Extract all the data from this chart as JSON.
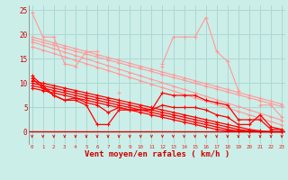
{
  "bg_color": "#cceee8",
  "grid_color": "#aad8d4",
  "line_color_dark": "#ff0000",
  "line_color_light": "#ff9999",
  "arrow_color": "#dd2222",
  "xlabel": "Vent moyen/en rafales ( km/h )",
  "xlabel_color": "#cc0000",
  "xlabel_fontsize": 6.5,
  "yticks": [
    0,
    5,
    10,
    15,
    20,
    25
  ],
  "xticks": [
    0,
    1,
    2,
    3,
    4,
    5,
    6,
    7,
    8,
    9,
    10,
    11,
    12,
    13,
    14,
    15,
    16,
    17,
    18,
    19,
    20,
    21,
    22,
    23
  ],
  "xlim": [
    0,
    23
  ],
  "ylim": [
    0,
    26
  ],
  "series_light_jagged": [
    [
      24.5,
      19.5,
      19.5,
      14.0,
      13.5,
      16.5,
      16.5,
      null,
      null,
      null,
      null,
      null,
      14.0,
      19.5,
      19.5,
      19.5,
      23.5,
      16.5,
      14.5,
      8.5,
      null,
      5.5,
      5.5,
      3.0
    ],
    [
      null,
      null,
      null,
      null,
      null,
      null,
      null,
      null,
      8.0,
      null,
      null,
      null,
      13.5,
      null,
      null,
      null,
      null,
      null,
      null,
      null,
      null,
      null,
      null,
      null
    ]
  ],
  "series_light_linear": [
    [
      19.5,
      18.9,
      18.3,
      17.7,
      17.1,
      16.5,
      15.9,
      15.3,
      14.7,
      14.1,
      13.5,
      12.9,
      12.3,
      11.7,
      11.1,
      10.5,
      9.9,
      9.3,
      8.7,
      8.1,
      7.5,
      6.9,
      6.3,
      5.7
    ],
    [
      19.0,
      18.4,
      17.8,
      17.2,
      16.6,
      16.0,
      15.4,
      14.8,
      14.2,
      13.6,
      13.0,
      12.4,
      11.8,
      11.2,
      10.6,
      10.0,
      9.4,
      8.8,
      8.2,
      7.6,
      7.0,
      6.4,
      5.8,
      5.2
    ],
    [
      18.5,
      17.8,
      17.1,
      16.4,
      15.7,
      15.0,
      14.3,
      13.6,
      12.9,
      12.2,
      11.5,
      10.8,
      10.1,
      9.4,
      8.7,
      8.0,
      7.3,
      6.6,
      5.9,
      5.2,
      4.5,
      3.8,
      3.1,
      2.4
    ],
    [
      17.5,
      16.8,
      16.1,
      15.4,
      14.7,
      14.0,
      13.3,
      12.6,
      11.9,
      11.2,
      10.5,
      9.8,
      9.1,
      8.4,
      7.7,
      7.0,
      6.3,
      5.6,
      4.9,
      4.2,
      3.5,
      2.8,
      2.1,
      1.4
    ]
  ],
  "series_dark_jagged": [
    [
      11.5,
      9.5,
      7.5,
      6.5,
      6.5,
      5.5,
      1.5,
      1.5,
      4.5,
      4.5,
      4.5,
      4.5,
      8.0,
      7.5,
      7.5,
      7.5,
      6.5,
      6.0,
      5.5,
      2.5,
      2.5,
      2.5,
      0.5,
      0.5
    ],
    [
      11.0,
      9.0,
      7.5,
      6.5,
      7.0,
      6.0,
      5.5,
      4.0,
      5.0,
      4.5,
      4.5,
      4.5,
      5.5,
      5.0,
      5.0,
      5.0,
      4.5,
      3.5,
      3.0,
      1.5,
      1.5,
      3.5,
      1.0,
      0.5
    ]
  ],
  "series_dark_linear": [
    [
      10.5,
      10.0,
      9.5,
      9.0,
      8.5,
      8.0,
      7.5,
      7.0,
      6.5,
      6.0,
      5.5,
      5.0,
      4.5,
      4.0,
      3.5,
      3.0,
      2.5,
      2.0,
      1.5,
      1.0,
      0.5,
      0.2,
      0.0,
      0.0
    ],
    [
      10.0,
      9.5,
      9.0,
      8.5,
      8.0,
      7.5,
      7.0,
      6.5,
      6.0,
      5.5,
      5.0,
      4.5,
      4.0,
      3.5,
      3.0,
      2.5,
      2.0,
      1.5,
      1.0,
      0.5,
      0.2,
      0.0,
      0.0,
      0.0
    ],
    [
      9.5,
      9.0,
      8.5,
      8.0,
      7.5,
      7.0,
      6.5,
      6.0,
      5.5,
      5.0,
      4.5,
      4.0,
      3.5,
      3.0,
      2.5,
      2.0,
      1.5,
      1.0,
      0.5,
      0.2,
      0.0,
      0.0,
      0.0,
      0.0
    ],
    [
      9.0,
      8.5,
      8.0,
      7.5,
      7.0,
      6.5,
      6.0,
      5.5,
      5.0,
      4.5,
      4.0,
      3.5,
      3.0,
      2.5,
      2.0,
      1.5,
      1.0,
      0.5,
      0.2,
      0.0,
      0.0,
      0.0,
      0.0,
      0.0
    ]
  ]
}
